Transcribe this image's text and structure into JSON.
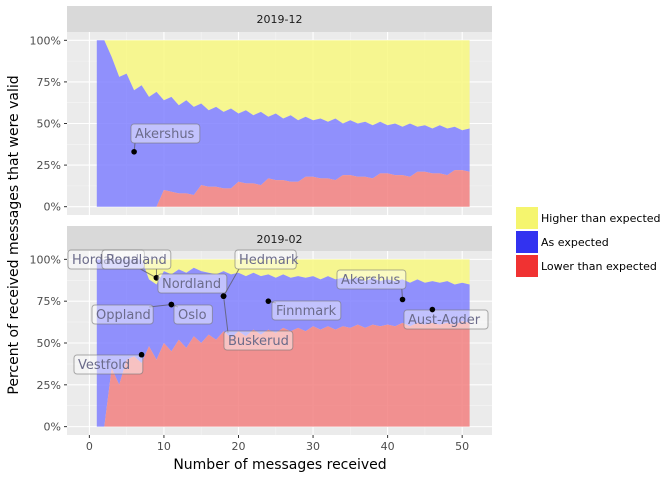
{
  "chart_data": {
    "type": "area",
    "xlabel": "Number of messages received",
    "ylabel": "Percent of received messages that were valid",
    "xlim": [
      -3,
      54
    ],
    "ylim": [
      -0.05,
      1.05
    ],
    "x_ticks": [
      0,
      10,
      20,
      30,
      40,
      50
    ],
    "y_ticks": [
      {
        "value": 0,
        "label": "0%"
      },
      {
        "value": 0.25,
        "label": "25%"
      },
      {
        "value": 0.5,
        "label": "50%"
      },
      {
        "value": 0.75,
        "label": "75%"
      },
      {
        "value": 1,
        "label": "100%"
      }
    ],
    "grid": true,
    "legend_position": "right",
    "legend": [
      {
        "name": "Higher than expected",
        "color": "#f5f56e"
      },
      {
        "name": "As expected",
        "color": "#3232f0"
      },
      {
        "name": "Lower than expected",
        "color": "#f03232"
      }
    ],
    "band_colors": {
      "higher": "#f8f880",
      "expected": "#8080ff",
      "lower": "#f28080"
    },
    "panels": [
      {
        "title": "2019-12",
        "x": [
          1,
          2,
          3,
          4,
          5,
          6,
          7,
          8,
          9,
          10,
          11,
          12,
          13,
          14,
          15,
          16,
          17,
          18,
          19,
          20,
          21,
          22,
          23,
          24,
          25,
          26,
          27,
          28,
          29,
          30,
          31,
          32,
          33,
          34,
          35,
          36,
          37,
          38,
          39,
          40,
          41,
          42,
          43,
          44,
          45,
          46,
          47,
          48,
          49,
          50,
          51
        ],
        "lower": [
          0,
          0,
          0,
          0,
          0,
          0,
          0,
          0,
          0,
          0.1,
          0.09,
          0.08,
          0.08,
          0.07,
          0.13,
          0.12,
          0.12,
          0.11,
          0.11,
          0.15,
          0.14,
          0.14,
          0.13,
          0.17,
          0.16,
          0.16,
          0.15,
          0.15,
          0.18,
          0.18,
          0.17,
          0.17,
          0.16,
          0.19,
          0.19,
          0.18,
          0.18,
          0.17,
          0.2,
          0.2,
          0.19,
          0.19,
          0.18,
          0.21,
          0.21,
          0.2,
          0.2,
          0.19,
          0.22,
          0.22,
          0.21
        ],
        "upper": [
          1,
          1,
          0.9,
          0.78,
          0.8,
          0.7,
          0.73,
          0.66,
          0.69,
          0.64,
          0.66,
          0.61,
          0.64,
          0.6,
          0.62,
          0.58,
          0.6,
          0.57,
          0.59,
          0.56,
          0.58,
          0.55,
          0.57,
          0.54,
          0.56,
          0.53,
          0.55,
          0.52,
          0.54,
          0.52,
          0.53,
          0.51,
          0.53,
          0.5,
          0.52,
          0.5,
          0.51,
          0.49,
          0.51,
          0.49,
          0.5,
          0.48,
          0.5,
          0.48,
          0.49,
          0.47,
          0.49,
          0.47,
          0.48,
          0.46,
          0.47
        ],
        "points": [
          {
            "label": "Akershus",
            "x": 6,
            "y": 0.33
          }
        ]
      },
      {
        "title": "2019-02",
        "x": [
          1,
          2,
          3,
          4,
          5,
          6,
          7,
          8,
          9,
          10,
          11,
          12,
          13,
          14,
          15,
          16,
          17,
          18,
          19,
          20,
          21,
          22,
          23,
          24,
          25,
          26,
          27,
          28,
          29,
          30,
          31,
          32,
          33,
          34,
          35,
          36,
          37,
          38,
          39,
          40,
          41,
          42,
          43,
          44,
          45,
          46,
          47,
          48,
          49,
          50,
          51
        ],
        "lower": [
          0,
          0,
          0.35,
          0.25,
          0.4,
          0.42,
          0.38,
          0.48,
          0.4,
          0.5,
          0.45,
          0.52,
          0.47,
          0.54,
          0.5,
          0.55,
          0.52,
          0.57,
          0.53,
          0.57,
          0.54,
          0.58,
          0.55,
          0.58,
          0.56,
          0.59,
          0.57,
          0.59,
          0.57,
          0.6,
          0.58,
          0.6,
          0.58,
          0.6,
          0.59,
          0.61,
          0.59,
          0.61,
          0.6,
          0.61,
          0.6,
          0.62,
          0.6,
          0.62,
          0.61,
          0.62,
          0.61,
          0.62,
          0.61,
          0.63,
          0.62
        ],
        "upper": [
          1,
          1,
          1,
          1,
          1,
          1,
          1,
          0.88,
          0.85,
          0.93,
          0.91,
          0.94,
          0.92,
          0.95,
          0.93,
          0.92,
          0.91,
          0.93,
          0.91,
          0.92,
          0.9,
          0.92,
          0.9,
          0.91,
          0.89,
          0.91,
          0.89,
          0.9,
          0.89,
          0.9,
          0.88,
          0.9,
          0.88,
          0.89,
          0.88,
          0.89,
          0.87,
          0.89,
          0.87,
          0.88,
          0.87,
          0.88,
          0.86,
          0.88,
          0.86,
          0.87,
          0.86,
          0.87,
          0.85,
          0.86,
          0.85
        ],
        "points": [
          {
            "label": "Vestfold",
            "x": 7,
            "y": 0.43
          },
          {
            "label": "Oppland",
            "x": 11,
            "y": 0.73
          },
          {
            "label": "Oslo",
            "x": 11,
            "y": 0.73
          },
          {
            "label": "Hordaland",
            "x": 9,
            "y": 0.89
          },
          {
            "label": "Rogaland",
            "x": 9,
            "y": 0.89
          },
          {
            "label": "Nordland",
            "x": 18,
            "y": 0.78
          },
          {
            "label": "Hedmark",
            "x": 18,
            "y": 0.78
          },
          {
            "label": "Buskerud",
            "x": 18,
            "y": 0.78
          },
          {
            "label": "Finnmark",
            "x": 24,
            "y": 0.75
          },
          {
            "label": "Akershus",
            "x": 42,
            "y": 0.76
          },
          {
            "label": "Aust-Agder",
            "x": 46,
            "y": 0.7
          }
        ]
      }
    ]
  }
}
